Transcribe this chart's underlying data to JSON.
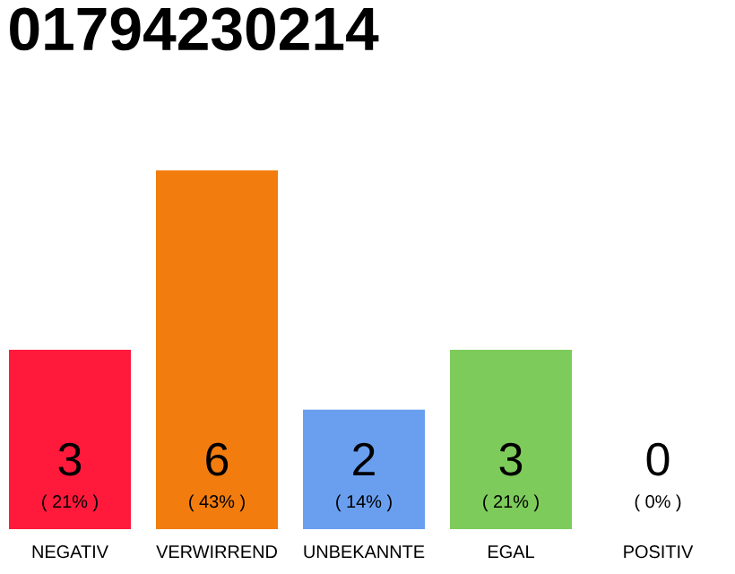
{
  "chart_data": {
    "type": "bar",
    "title": "01794230214",
    "categories": [
      "NEGATIV",
      "VERWIRREND",
      "UNBEKANNTE",
      "EGAL",
      "POSITIV"
    ],
    "values": [
      3,
      6,
      2,
      3,
      0
    ],
    "colors": [
      "#ff1a3c",
      "#f27c0e",
      "#6a9ff0",
      "#7dcb5a",
      "#cccccc"
    ],
    "value_labels": [
      "3",
      "6",
      "2",
      "3",
      "0"
    ],
    "annotations": [
      "( 21% )",
      "( 43% )",
      "( 14% )",
      "( 21% )",
      "( 0% )"
    ]
  }
}
